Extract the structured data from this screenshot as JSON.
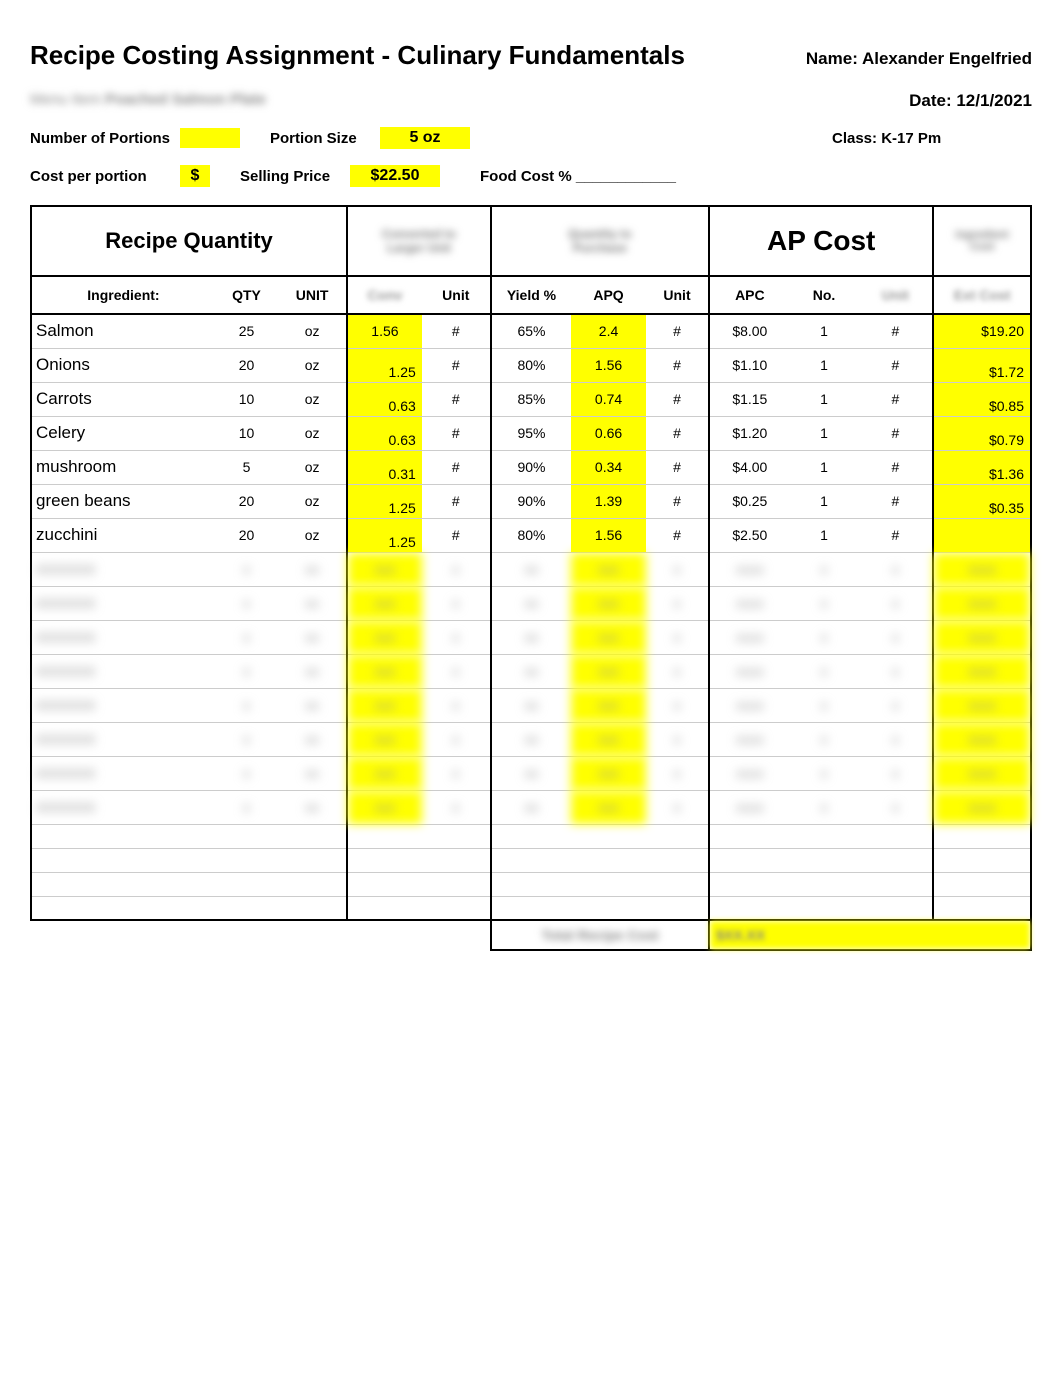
{
  "title": "Recipe Costing Assignment - Culinary Fundamentals",
  "name_label": "Name: Alexander Engelfried",
  "date_label": "Date: 12/1/2021",
  "class_label": "Class: K-17 Pm",
  "portions_label": "Number of Portions",
  "portion_size_label": "Portion Size",
  "portion_size_value": "5 oz",
  "cost_per_portion_label": "Cost per portion",
  "cost_symbol": "$",
  "selling_price_label": "Selling Price",
  "selling_price_value": "$22.50",
  "food_cost_label": "Food Cost % ____________",
  "section_labels": {
    "recipe_qty": "Recipe Quantity",
    "ap_cost": "AP Cost"
  },
  "columns": {
    "ingredient": "Ingredient:",
    "qty": "QTY",
    "unit1": "UNIT",
    "unit2": "Unit",
    "yield": "Yield %",
    "apq": "APQ",
    "unit3": "Unit",
    "apc": "APC",
    "no": "No."
  },
  "rows": [
    {
      "ing": "Salmon",
      "qty": "25",
      "u": "oz",
      "conv": "1.56",
      "u2": "#",
      "yield": "65%",
      "apq": "2.4",
      "u3": "#",
      "apc": "$8.00",
      "no": "1",
      "u4": "#",
      "ext": "$19.20"
    },
    {
      "ing": "Onions",
      "qty": "20",
      "u": "oz",
      "conv": "1.25",
      "u2": "#",
      "yield": "80%",
      "apq": "1.56",
      "u3": "#",
      "apc": "$1.10",
      "no": "1",
      "u4": "#",
      "ext": "$1.72"
    },
    {
      "ing": "Carrots",
      "qty": "10",
      "u": "oz",
      "conv": "0.63",
      "u2": "#",
      "yield": "85%",
      "apq": "0.74",
      "u3": "#",
      "apc": "$1.15",
      "no": "1",
      "u4": "#",
      "ext": "$0.85"
    },
    {
      "ing": "Celery",
      "qty": "10",
      "u": "oz",
      "conv": "0.63",
      "u2": "#",
      "yield": "95%",
      "apq": "0.66",
      "u3": "#",
      "apc": "$1.20",
      "no": "1",
      "u4": "#",
      "ext": "$0.79"
    },
    {
      "ing": "mushroom",
      "qty": "5",
      "u": "oz",
      "conv": "0.31",
      "u2": "#",
      "yield": "90%",
      "apq": "0.34",
      "u3": "#",
      "apc": "$4.00",
      "no": "1",
      "u4": "#",
      "ext": "$1.36"
    },
    {
      "ing": "green beans",
      "qty": "20",
      "u": "oz",
      "conv": "1.25",
      "u2": "#",
      "yield": "90%",
      "apq": "1.39",
      "u3": "#",
      "apc": "$0.25",
      "no": "1",
      "u4": "#",
      "ext": "$0.35"
    },
    {
      "ing": "zucchini",
      "qty": "20",
      "u": "oz",
      "conv": "1.25",
      "u2": "#",
      "yield": "80%",
      "apq": "1.56",
      "u3": "#",
      "apc": "$2.50",
      "no": "1",
      "u4": "#",
      "ext": ""
    }
  ],
  "colors": {
    "highlight": "#ffff00"
  }
}
